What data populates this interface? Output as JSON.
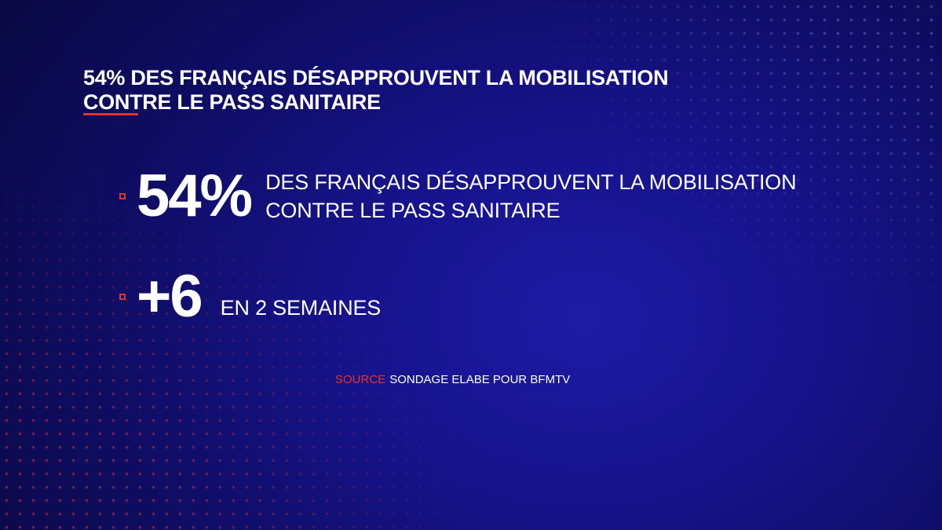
{
  "title": {
    "line1": "54% DES FRANÇAIS DÉSAPPROUVENT LA MOBILISATION",
    "line2": "CONTRE LE PASS SANITAIRE"
  },
  "stats": [
    {
      "value": "54%",
      "description_line1": "DES FRANÇAIS DÉSAPPROUVENT LA MOBILISATION",
      "description_line2": "CONTRE LE PASS SANITAIRE"
    },
    {
      "value": "+6",
      "description": "EN 2 SEMAINES"
    }
  ],
  "source": {
    "label": "SOURCE",
    "text": "SONDAGE ELABE POUR BFMTV"
  },
  "colors": {
    "accent": "#e0342f",
    "background": "#16138a",
    "text": "#ffffff"
  }
}
